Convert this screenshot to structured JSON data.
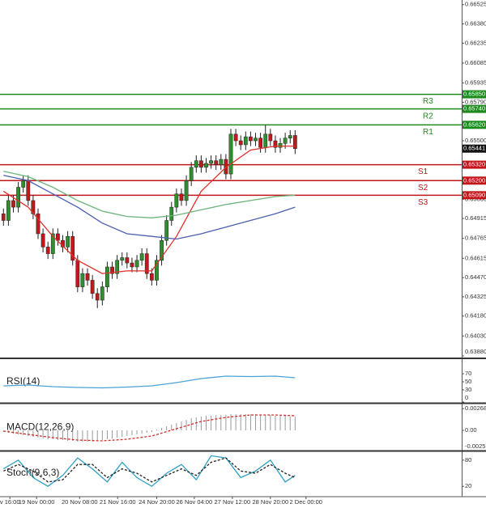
{
  "chart_data": [
    {
      "type": "candlestick",
      "xlim": [
        -0.7,
        92.7
      ],
      "ylim": [
        0.6388,
        0.6656
      ],
      "yticks": [
        0.66525,
        {
          "value": 0.6638,
          "label": "0.66380"
        },
        0.66235,
        0.66085,
        0.65935,
        {
          "value": 0.6579,
          "label": "0.65790"
        },
        {
          "value": 0.655,
          "label": "0.65500"
        },
        {
          "value": 0.6506,
          "label": "0.65060"
        },
        0.64915,
        0.64765,
        0.64615,
        {
          "value": 0.6447,
          "label": "0.64470"
        },
        0.64325,
        {
          "value": 0.6418,
          "label": "0.64180"
        },
        {
          "value": 0.6403,
          "label": "0.64030"
        },
        {
          "value": 0.6388,
          "label": "0.63880"
        }
      ],
      "up_color": "#2f8f2f",
      "down_color": "#c0181c",
      "open": [
        0.6495,
        0.649,
        0.6505,
        0.65,
        0.6515,
        0.652,
        0.6505,
        0.6495,
        0.648,
        0.647,
        0.6465,
        0.648,
        0.6475,
        0.647,
        0.6478,
        0.646,
        0.644,
        0.645,
        0.6445,
        0.6435,
        0.643,
        0.644,
        0.6455,
        0.645,
        0.646,
        0.6462,
        0.6458,
        0.6455,
        0.646,
        0.6465,
        0.645,
        0.6445,
        0.646,
        0.6475,
        0.649,
        0.65,
        0.651,
        0.6505,
        0.652,
        0.653,
        0.6535,
        0.653,
        0.6533,
        0.6535,
        0.6532,
        0.6536,
        0.6525,
        0.6555,
        0.655,
        0.6547,
        0.6553,
        0.655,
        0.6552,
        0.6545,
        0.6555,
        0.655,
        0.6545,
        0.6548,
        0.6552,
        0.6554
      ],
      "high": [
        0.6499,
        0.6509,
        0.6509,
        0.6519,
        0.6524,
        0.6524,
        0.6509,
        0.6499,
        0.6484,
        0.6474,
        0.6484,
        0.6484,
        0.6479,
        0.6482,
        0.6482,
        0.6464,
        0.6454,
        0.6454,
        0.6449,
        0.6439,
        0.6444,
        0.6459,
        0.6459,
        0.6464,
        0.6466,
        0.6466,
        0.6462,
        0.6464,
        0.6469,
        0.6469,
        0.6454,
        0.6464,
        0.6479,
        0.6494,
        0.6504,
        0.6514,
        0.6514,
        0.6524,
        0.6534,
        0.6539,
        0.6539,
        0.6537,
        0.6539,
        0.6539,
        0.654,
        0.654,
        0.6559,
        0.6559,
        0.6554,
        0.6557,
        0.6557,
        0.6556,
        0.6556,
        0.6562,
        0.6559,
        0.6554,
        0.6552,
        0.6556,
        0.6558,
        0.6558
      ],
      "low": [
        0.6486,
        0.6486,
        0.6496,
        0.6496,
        0.6511,
        0.6501,
        0.6491,
        0.6476,
        0.6466,
        0.6461,
        0.6461,
        0.6471,
        0.6466,
        0.6466,
        0.6456,
        0.6436,
        0.6436,
        0.6441,
        0.6431,
        0.6424,
        0.6426,
        0.6436,
        0.6446,
        0.6446,
        0.6456,
        0.6454,
        0.6451,
        0.6451,
        0.6456,
        0.6446,
        0.6441,
        0.6441,
        0.6456,
        0.6471,
        0.6486,
        0.6496,
        0.6501,
        0.6501,
        0.6516,
        0.6526,
        0.6526,
        0.6526,
        0.6529,
        0.6528,
        0.6528,
        0.6521,
        0.6521,
        0.6546,
        0.6543,
        0.6543,
        0.6546,
        0.6546,
        0.6541,
        0.6541,
        0.6546,
        0.6541,
        0.6541,
        0.6544,
        0.6548,
        0.654
      ],
      "close": [
        0.649,
        0.6505,
        0.65,
        0.6515,
        0.652,
        0.6505,
        0.6495,
        0.648,
        0.647,
        0.6465,
        0.648,
        0.6475,
        0.647,
        0.6478,
        0.646,
        0.644,
        0.645,
        0.6445,
        0.6435,
        0.643,
        0.644,
        0.6455,
        0.645,
        0.646,
        0.6462,
        0.6458,
        0.6455,
        0.646,
        0.6465,
        0.645,
        0.6445,
        0.646,
        0.6475,
        0.649,
        0.65,
        0.651,
        0.6505,
        0.652,
        0.653,
        0.6535,
        0.653,
        0.6533,
        0.6535,
        0.6532,
        0.6536,
        0.6525,
        0.6555,
        0.655,
        0.6547,
        0.6553,
        0.655,
        0.6552,
        0.6545,
        0.6555,
        0.655,
        0.6545,
        0.6548,
        0.6552,
        0.6554,
        0.65441
      ],
      "series": [
        {
          "color": "#e0302a",
          "x": [
            0,
            5,
            10,
            15,
            20,
            25,
            30,
            35,
            40,
            45,
            50,
            55,
            59
          ],
          "values": [
            0.6512,
            0.65,
            0.6478,
            0.646,
            0.645,
            0.6452,
            0.6452,
            0.6478,
            0.6512,
            0.653,
            0.6543,
            0.6546,
            0.6546
          ]
        },
        {
          "color": "#6bb57a",
          "x": [
            0,
            5,
            10,
            15,
            20,
            25,
            30,
            35,
            40,
            45,
            50,
            55,
            59
          ],
          "values": [
            0.6527,
            0.6523,
            0.6515,
            0.6505,
            0.6497,
            0.6493,
            0.6492,
            0.6494,
            0.6498,
            0.6502,
            0.6505,
            0.6508,
            0.6509
          ]
        },
        {
          "color": "#4a5fb0",
          "x": [
            0,
            5,
            10,
            15,
            20,
            25,
            30,
            35,
            40,
            45,
            50,
            55,
            59
          ],
          "values": [
            0.6524,
            0.652,
            0.651,
            0.65,
            0.6488,
            0.648,
            0.6478,
            0.6476,
            0.648,
            0.6485,
            0.649,
            0.6495,
            0.65
          ]
        }
      ],
      "levels": {
        "names": [
          "R3",
          "R2",
          "R1",
          "S1",
          "S2",
          "S3"
        ],
        "values": [
          0.6585,
          0.6574,
          0.6562,
          0.6532,
          0.652,
          0.6509
        ],
        "value_labels": [
          "0.65850",
          "0.65740",
          "0.65620",
          "0.65320",
          "0.65200",
          "0.65090"
        ],
        "colors": [
          "#1e8a1e",
          "#1e8a1e",
          "#1e8a1e",
          "#c0161a",
          "#c0161a",
          "#c0161a"
        ]
      },
      "last_price": 0.65441,
      "last_price_color": "#111111"
    },
    {
      "type": "line",
      "title": "RSI(14)",
      "ylim": [
        0,
        100
      ],
      "yticks": [
        70,
        50,
        30,
        0
      ],
      "series": [
        {
          "color": "#4aa3d6",
          "x": [
            0,
            5,
            10,
            15,
            20,
            25,
            30,
            35,
            40,
            45,
            50,
            55,
            59
          ],
          "values": [
            40,
            42,
            38,
            36,
            35,
            37,
            40,
            48,
            58,
            64,
            63,
            64,
            60
          ]
        }
      ]
    },
    {
      "type": "macd",
      "title": "MACD(12,26,9)",
      "ylim": [
        -0.0025,
        0.0032
      ],
      "yticks": [
        0.002686,
        {
          "value": 0,
          "label": "0.00"
        },
        -0.0025
      ],
      "bars": {
        "color": "#9a9a9a",
        "values": [
          -0.0002,
          -0.0003,
          -0.0004,
          -0.0005,
          -0.0006,
          -0.0007,
          -0.0008,
          -0.0009,
          -0.001,
          -0.0011,
          -0.0011,
          -0.0012,
          -0.0012,
          -0.0013,
          -0.0013,
          -0.0014,
          -0.0014,
          -0.0014,
          -0.0014,
          -0.0013,
          -0.0012,
          -0.0011,
          -0.001,
          -0.0009,
          -0.0008,
          -0.0007,
          -0.0006,
          -0.0005,
          -0.0004,
          -0.0003,
          -0.0002,
          0.0001,
          0.0003,
          0.0005,
          0.0007,
          0.0009,
          0.0011,
          0.0013,
          0.0015,
          0.0016,
          0.0017,
          0.0018,
          0.0018,
          0.0019,
          0.0019,
          0.0019,
          0.002,
          0.002,
          0.002,
          0.002,
          0.002,
          0.002,
          0.0019,
          0.0019,
          0.0019,
          0.0018,
          0.0018,
          0.0018,
          0.0017,
          0.0017
        ]
      },
      "series": [
        {
          "color": "#d0302a",
          "style": "dashed",
          "x": [
            0,
            5,
            10,
            15,
            20,
            25,
            30,
            35,
            40,
            45,
            50,
            55,
            59
          ],
          "values": [
            -0.0001,
            -0.0005,
            -0.0009,
            -0.0012,
            -0.0013,
            -0.0011,
            -0.0007,
            0.0002,
            0.0011,
            0.0016,
            0.0019,
            0.0019,
            0.0018
          ]
        }
      ]
    },
    {
      "type": "line",
      "title": "Stoch(9,6,3)",
      "ylim": [
        0,
        100
      ],
      "yticks": [
        80,
        20
      ],
      "series": [
        {
          "color": "#2f9fc4",
          "x": [
            0,
            3,
            6,
            9,
            12,
            15,
            18,
            21,
            24,
            27,
            30,
            33,
            36,
            39,
            42,
            45,
            48,
            51,
            54,
            57,
            59
          ],
          "values": [
            60,
            80,
            40,
            20,
            45,
            85,
            60,
            30,
            75,
            40,
            20,
            50,
            70,
            35,
            90,
            85,
            40,
            55,
            80,
            30,
            45
          ]
        },
        {
          "color": "#222222",
          "style": "dashed",
          "x": [
            0,
            3,
            6,
            9,
            12,
            15,
            18,
            21,
            24,
            27,
            30,
            33,
            36,
            39,
            42,
            45,
            48,
            51,
            54,
            57,
            59
          ],
          "values": [
            55,
            70,
            55,
            30,
            35,
            70,
            70,
            40,
            60,
            50,
            30,
            45,
            60,
            45,
            75,
            85,
            55,
            50,
            70,
            50,
            40
          ]
        }
      ],
      "xticks": [
        {
          "value": 1.3,
          "label": "v 16:00"
        },
        {
          "value": 6.7,
          "label": "19 Nov 00:00"
        },
        {
          "value": 15.4,
          "label": "20 Nov 08:00"
        },
        {
          "value": 23.1,
          "label": "21 Nov 16:00"
        },
        {
          "value": 31,
          "label": "24 Nov 20:00"
        },
        {
          "value": 38.6,
          "label": "26 Nov 04:00"
        },
        {
          "value": 46.3,
          "label": "27 Nov 12:00"
        },
        {
          "value": 54,
          "label": "28 Nov 20:00"
        },
        {
          "value": 61.2,
          "label": "2 Dec 00:00"
        }
      ]
    }
  ]
}
